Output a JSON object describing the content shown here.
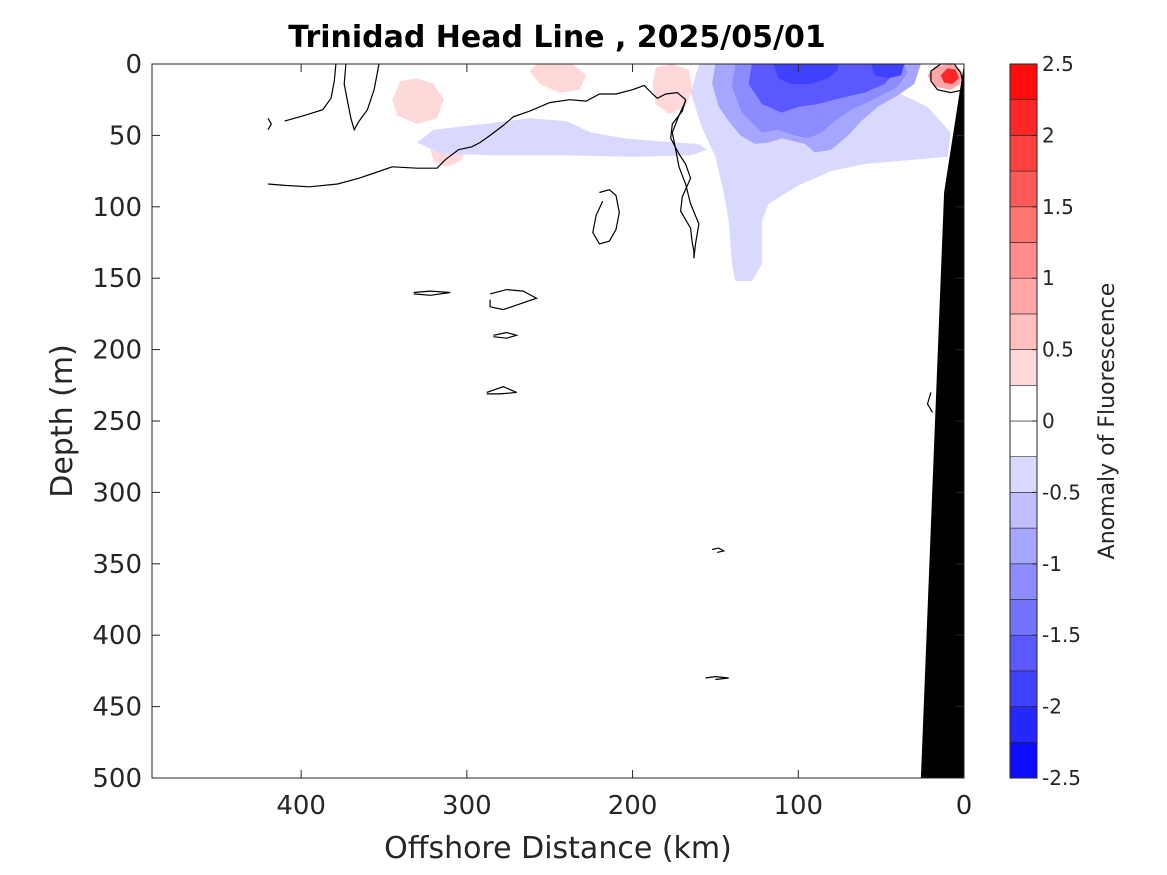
{
  "chart_data": {
    "type": "contour",
    "title": "Trinidad Head Line , 2025/05/01",
    "xlabel": "Offshore Distance (km)",
    "ylabel": "Depth (m)",
    "x_reversed": true,
    "y_reversed": true,
    "xlim": [
      490,
      0
    ],
    "ylim": [
      0,
      500
    ],
    "xticks": [
      400,
      300,
      200,
      100,
      0
    ],
    "yticks": [
      0,
      50,
      100,
      150,
      200,
      250,
      300,
      350,
      400,
      450,
      500
    ],
    "colorbar": {
      "label": "Anomaly of Fluorescence",
      "range": [
        -2.5,
        2.5
      ],
      "step": 0.25,
      "ticks": [
        "-2.5",
        "-2",
        "-1.5",
        "-1",
        "-0.5",
        "0",
        "0.5",
        "1",
        "1.5",
        "2",
        "2.5"
      ],
      "colormap": "blue-white-red"
    },
    "positive_regions": [
      {
        "x": [
          322,
          300
        ],
        "depth": [
          48,
          72
        ],
        "level": 0.25
      },
      {
        "x": [
          345,
          315
        ],
        "depth": [
          8,
          42
        ],
        "level": 0.25
      },
      {
        "x": [
          260,
          226
        ],
        "depth": [
          0,
          20
        ],
        "level": 0.25
      },
      {
        "x": [
          190,
          164
        ],
        "depth": [
          0,
          35
        ],
        "level": 0.25
      },
      {
        "x": [
          22,
          0
        ],
        "depth": [
          0,
          20
        ],
        "level": 2.25
      }
    ],
    "negative_regions": [
      {
        "x": [
          330,
          150
        ],
        "depth": [
          35,
          65
        ],
        "level": -0.25
      },
      {
        "x": [
          160,
          40
        ],
        "depth": [
          0,
          150
        ],
        "level": -0.75
      },
      {
        "x": [
          100,
          20
        ],
        "depth": [
          0,
          40
        ],
        "level": -1.75
      }
    ],
    "topography_depth_at_x": [
      {
        "x": 26,
        "depth": 500
      },
      {
        "x": 12,
        "depth": 90
      },
      {
        "x": 0,
        "depth": 0
      }
    ],
    "topography_color": "#000000"
  }
}
